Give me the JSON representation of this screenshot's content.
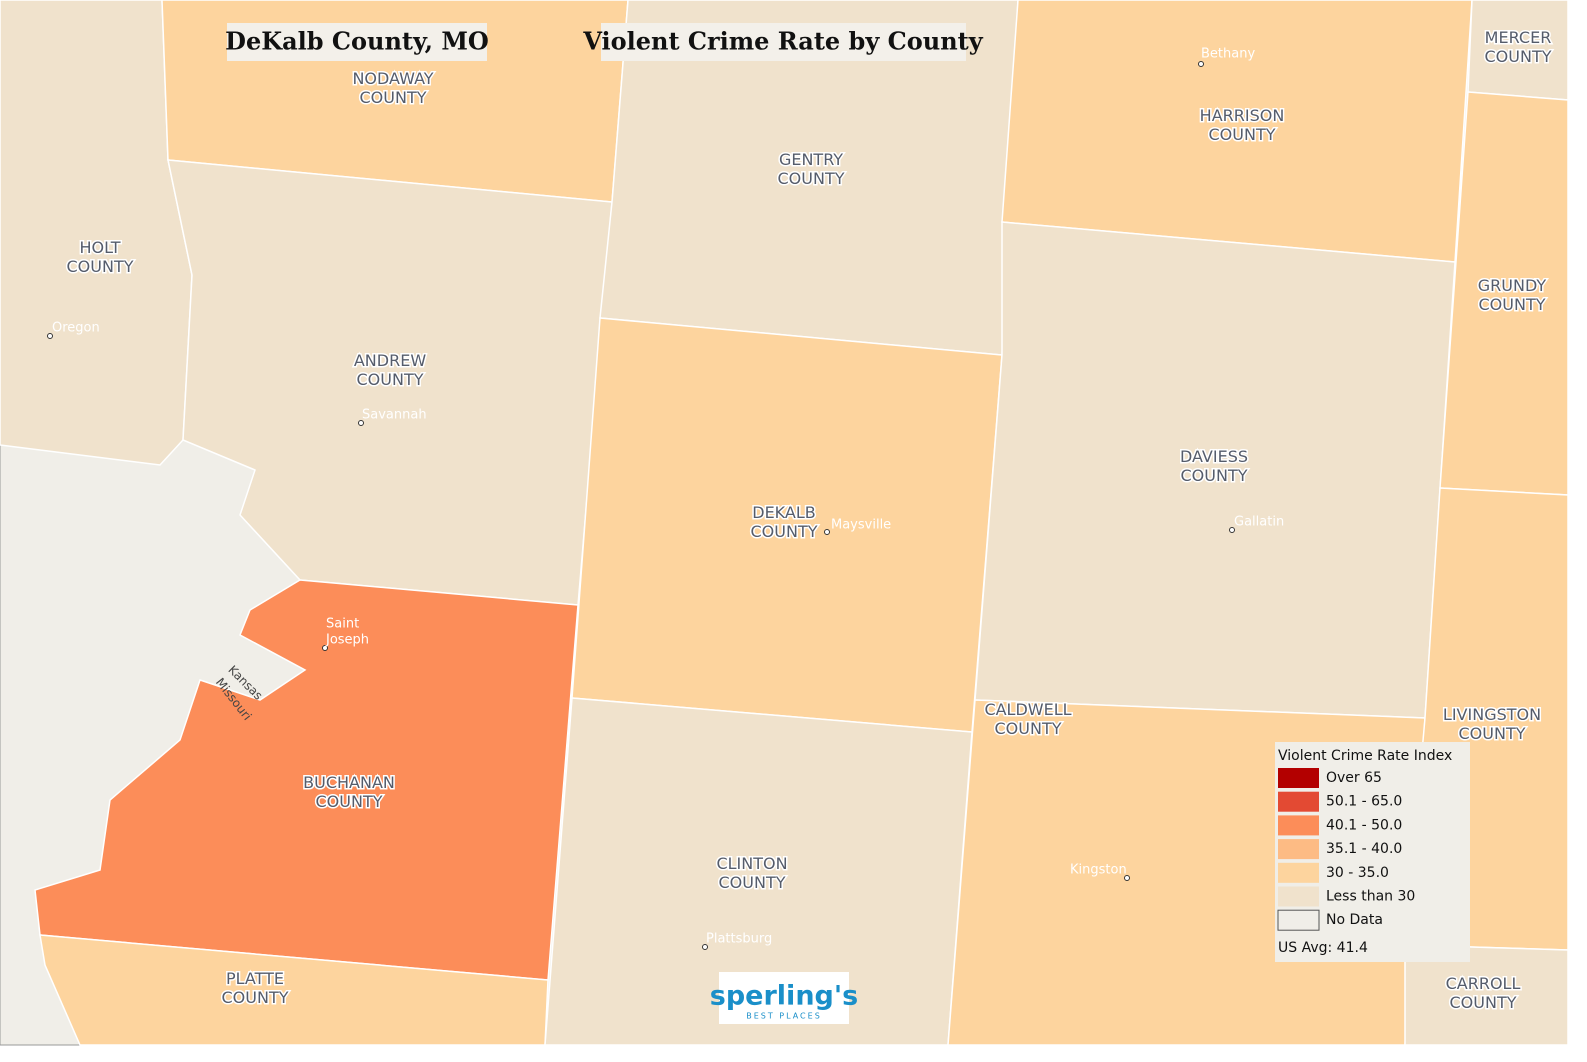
{
  "header": {
    "title": "DeKalb County, MO",
    "subtitle": "Violent Crime Rate by County"
  },
  "counties": [
    {
      "label": [
        "HOLT",
        "COUNTY"
      ],
      "color": "#f0e2cc"
    },
    {
      "label": [
        "NODAWAY",
        "COUNTY"
      ],
      "color": "#fdd49e"
    },
    {
      "label": [
        "ANDREW",
        "COUNTY"
      ],
      "color": "#f0e2cc"
    },
    {
      "label": [
        "BUCHANAN",
        "COUNTY"
      ],
      "color": "#fc8d59"
    },
    {
      "label": [
        "PLATTE",
        "COUNTY"
      ],
      "color": "#fdd49e"
    },
    {
      "label": [
        "GENTRY",
        "COUNTY"
      ],
      "color": "#f0e2cc"
    },
    {
      "label": [
        "DEKALB",
        "COUNTY"
      ],
      "color": "#fdd49e"
    },
    {
      "label": [
        "CLINTON",
        "COUNTY"
      ],
      "color": "#f0e2cc"
    },
    {
      "label": [
        "HARRISON",
        "COUNTY"
      ],
      "color": "#fdd49e"
    },
    {
      "label": [
        "DAVIESS",
        "COUNTY"
      ],
      "color": "#f0e2cc"
    },
    {
      "label": [
        "CALDWELL",
        "COUNTY"
      ],
      "color": "#fdd49e"
    },
    {
      "label": [
        "MERCER",
        "COUNTY"
      ],
      "color": "#f0e2cc"
    },
    {
      "label": [
        "GRUNDY",
        "COUNTY"
      ],
      "color": "#fdd49e"
    },
    {
      "label": [
        "LIVINGSTON",
        "COUNTY"
      ],
      "color": "#fdd49e"
    },
    {
      "label": [
        "CARROLL",
        "COUNTY"
      ],
      "color": "#f0e2cc"
    }
  ],
  "cities": [
    {
      "label": [
        "Oregon"
      ]
    },
    {
      "label": [
        "Savannah"
      ]
    },
    {
      "label": [
        "Saint",
        "Joseph"
      ]
    },
    {
      "label": [
        "Maysville"
      ]
    },
    {
      "label": [
        "Plattsburg"
      ]
    },
    {
      "label": [
        "Bethany"
      ]
    },
    {
      "label": [
        "Gallatin"
      ]
    },
    {
      "label": [
        "Kingston"
      ]
    }
  ],
  "rivers": [
    "Kansas",
    "Missouri"
  ],
  "legend": {
    "title": "Violent Crime Rate Index",
    "items": [
      {
        "label": "Over 65",
        "color": "#b30000"
      },
      {
        "label": "50.1 - 65.0",
        "color": "#e34a33"
      },
      {
        "label": "40.1 - 50.0",
        "color": "#fc8d59"
      },
      {
        "label": "35.1 - 40.0",
        "color": "#fdbb84"
      },
      {
        "label": "30 - 35.0",
        "color": "#fdd49e"
      },
      {
        "label": "Less than 30",
        "color": "#f0e2cc"
      },
      {
        "label": "No Data",
        "color": "#f0eee8"
      }
    ],
    "note": "US Avg: 41.4"
  },
  "logo": {
    "name": "sperling's",
    "tagline": "BEST PLACES"
  }
}
